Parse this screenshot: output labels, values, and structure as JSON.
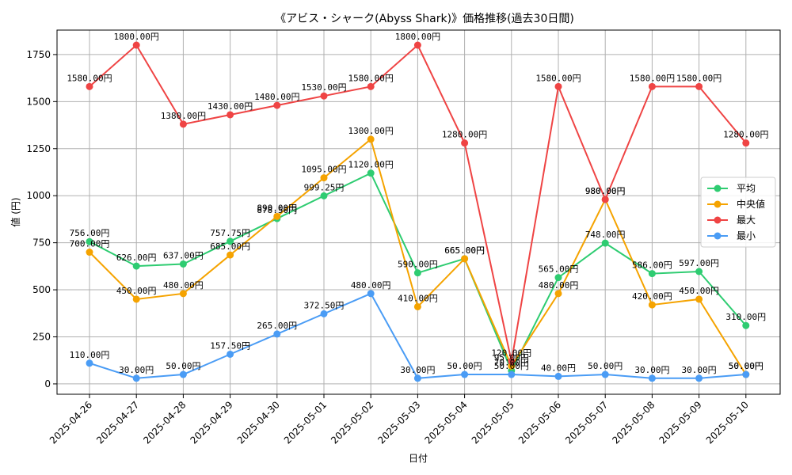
{
  "chart_data": {
    "type": "line",
    "title": "《アビス・シャーク(Abyss Shark)》価格推移(過去30日間)",
    "xlabel": "日付",
    "ylabel": "値 (円)",
    "ylim": [
      -55,
      1880
    ],
    "yticks": [
      0,
      250,
      500,
      750,
      1000,
      1250,
      1500,
      1750
    ],
    "grid": true,
    "legend_position": "center-right",
    "label_suffix": "円",
    "x": [
      "2025-04-26",
      "2025-04-27",
      "2025-04-28",
      "2025-04-29",
      "2025-04-30",
      "2025-05-01",
      "2025-05-02",
      "2025-05-03",
      "2025-05-04",
      "2025-05-05",
      "2025-05-06",
      "2025-05-07",
      "2025-05-08",
      "2025-05-09",
      "2025-05-10"
    ],
    "series": [
      {
        "name": "平均",
        "color": "#2ecc71",
        "values": [
          756.0,
          626.0,
          637.0,
          757.75,
          878.5,
          999.25,
          1120.0,
          590.0,
          665.0,
          70.0,
          565.0,
          748.0,
          586.0,
          597.0,
          310.0
        ]
      },
      {
        "name": "中央値",
        "color": "#f5a300",
        "values": [
          700.0,
          450.0,
          480.0,
          685.0,
          890.0,
          1095.0,
          1300.0,
          410.0,
          665.0,
          95.0,
          480.0,
          980.0,
          420.0,
          450.0,
          50.0
        ]
      },
      {
        "name": "最大",
        "color": "#ef4444",
        "values": [
          1580.0,
          1800.0,
          1380.0,
          1430.0,
          1480.0,
          1530.0,
          1580.0,
          1800.0,
          1280.0,
          120.0,
          1580.0,
          980.0,
          1580.0,
          1580.0,
          1280.0
        ]
      },
      {
        "name": "最小",
        "color": "#4a9cf5",
        "values": [
          110.0,
          30.0,
          50.0,
          157.5,
          265.0,
          372.5,
          480.0,
          30.0,
          50.0,
          50.0,
          40.0,
          50.0,
          30.0,
          30.0,
          50.0
        ]
      }
    ]
  }
}
